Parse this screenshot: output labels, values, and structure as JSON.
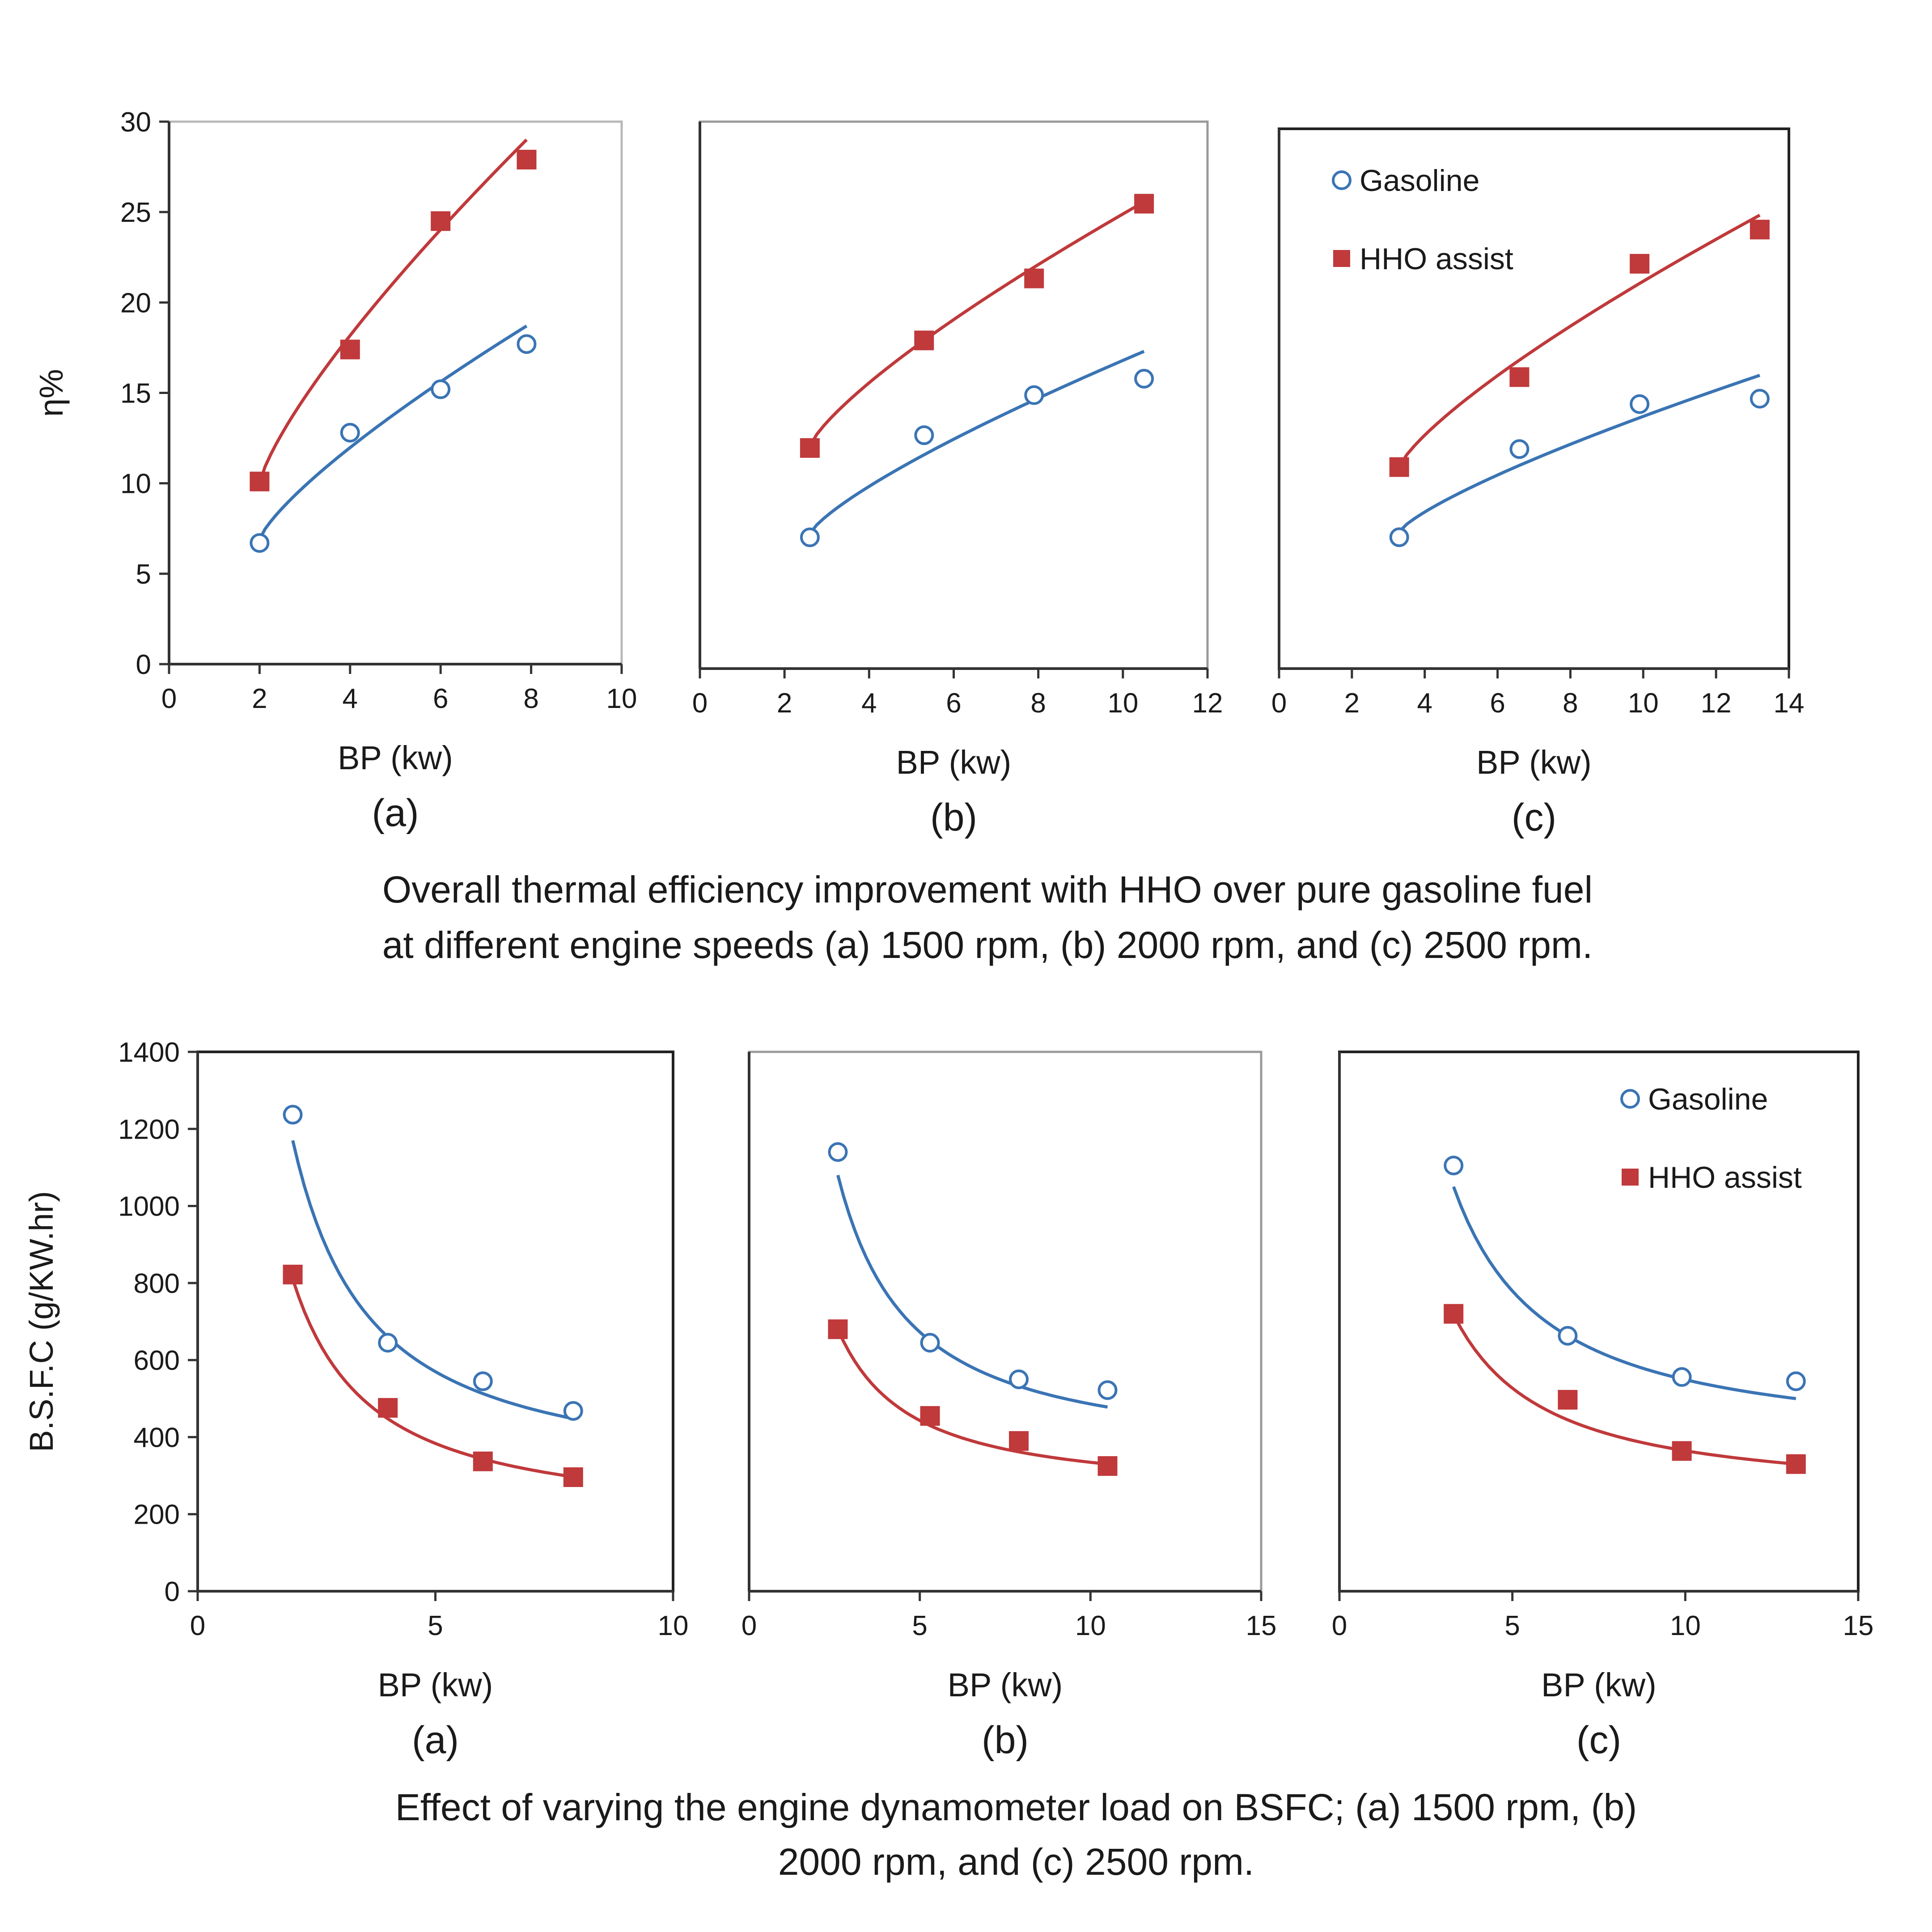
{
  "captions": {
    "row1": [
      "Overall thermal efficiency improvement with HHO over pure gasoline fuel",
      "at different engine speeds (a) 1500 rpm, (b) 2000 rpm, and (c) 2500 rpm."
    ],
    "row2": [
      "Effect of varying the engine dynamometer load on BSFC; (a) 1500 rpm, (b)",
      "2000 rpm, and (c) 2500 rpm."
    ]
  },
  "colors": {
    "gasoline": "#3a74b4",
    "hho": "#c0393b",
    "axis": "#333333"
  },
  "chart_data": [
    {
      "type": "scatter",
      "row": 1,
      "panel_label": "(a)",
      "xlabel": "BP (kw)",
      "ylabel": "η%",
      "xlim": [
        0,
        10
      ],
      "xticks": [
        0,
        2,
        4,
        6,
        8,
        10
      ],
      "ylim": [
        0,
        30
      ],
      "yticks": [
        0,
        5,
        10,
        15,
        20,
        25,
        30
      ],
      "grid": false,
      "series": [
        {
          "name": "Gasoline",
          "marker": "circle",
          "x": [
            2,
            4,
            6,
            7.9
          ],
          "y": [
            6.7,
            12.8,
            15.2,
            17.7
          ],
          "fit": {
            "x": [
              2,
              7.9
            ],
            "y": [
              6.9,
              18.7
            ]
          }
        },
        {
          "name": "HHO assist",
          "marker": "square",
          "x": [
            2,
            4,
            6,
            7.9
          ],
          "y": [
            10.1,
            17.4,
            24.5,
            27.9
          ],
          "fit": {
            "x": [
              2,
              7.9
            ],
            "y": [
              10,
              29
            ]
          }
        }
      ]
    },
    {
      "type": "scatter",
      "row": 1,
      "panel_label": "(b)",
      "xlabel": "BP (kw)",
      "ylabel": "",
      "xlim": [
        0,
        12
      ],
      "xticks": [
        0,
        2,
        4,
        6,
        8,
        10,
        12
      ],
      "ylim": [
        0,
        30
      ],
      "yticks": [],
      "grid": false,
      "series": [
        {
          "name": "Gasoline",
          "marker": "circle",
          "x": [
            2.6,
            5.3,
            7.9,
            10.5
          ],
          "y": [
            7.2,
            12.8,
            15.0,
            15.9
          ],
          "fit": {
            "x": [
              2.6,
              10.5
            ],
            "y": [
              7.4,
              17.4
            ]
          }
        },
        {
          "name": "HHO assist",
          "marker": "square",
          "x": [
            2.6,
            5.3,
            7.9,
            10.5
          ],
          "y": [
            12.1,
            18.0,
            21.4,
            25.5
          ],
          "fit": {
            "x": [
              2.6,
              10.5
            ],
            "y": [
              12.2,
              25.6
            ]
          }
        }
      ]
    },
    {
      "type": "scatter",
      "row": 1,
      "panel_label": "(c)",
      "xlabel": "BP (kw)",
      "ylabel": "",
      "xlim": [
        0,
        14
      ],
      "xticks": [
        0,
        2,
        4,
        6,
        8,
        10,
        12,
        14
      ],
      "ylim": [
        0,
        30
      ],
      "yticks": [],
      "grid": false,
      "legend": "top-left",
      "series": [
        {
          "name": "Gasoline",
          "marker": "circle",
          "x": [
            3.3,
            6.6,
            9.9,
            13.2
          ],
          "y": [
            7.3,
            12.2,
            14.7,
            15.0
          ],
          "fit": {
            "x": [
              3.3,
              13.2
            ],
            "y": [
              7.6,
              16.3
            ]
          }
        },
        {
          "name": "HHO assist",
          "marker": "square",
          "x": [
            3.3,
            6.6,
            9.9,
            13.2
          ],
          "y": [
            11.2,
            16.2,
            22.5,
            24.4
          ],
          "fit": {
            "x": [
              3.3,
              13.2
            ],
            "y": [
              11.2,
              25.2
            ]
          }
        }
      ]
    },
    {
      "type": "scatter",
      "row": 2,
      "panel_label": "(a)",
      "xlabel": "BP (kw)",
      "ylabel": "B.S.F.C (g/KW.hr)",
      "xlim": [
        0,
        10
      ],
      "xticks": [
        0,
        5,
        10
      ],
      "ylim": [
        0,
        1400
      ],
      "yticks": [
        0,
        200,
        400,
        600,
        800,
        1000,
        1200,
        1400
      ],
      "grid": false,
      "series": [
        {
          "name": "Gasoline",
          "marker": "circle",
          "x": [
            2,
            4,
            6,
            7.9
          ],
          "y": [
            1237,
            645,
            545,
            468
          ],
          "fit": {
            "x": [
              2,
              7.9
            ],
            "y": [
              1170,
              448
            ]
          }
        },
        {
          "name": "HHO assist",
          "marker": "square",
          "x": [
            2,
            4,
            6,
            7.9
          ],
          "y": [
            822,
            476,
            337,
            296
          ],
          "fit": {
            "x": [
              2,
              7.9
            ],
            "y": [
              810,
              297
            ]
          }
        }
      ]
    },
    {
      "type": "scatter",
      "row": 2,
      "panel_label": "(b)",
      "xlabel": "BP (kw)",
      "ylabel": "",
      "xlim": [
        0,
        15
      ],
      "xticks": [
        0,
        5,
        10,
        15
      ],
      "ylim": [
        0,
        1400
      ],
      "yticks": [],
      "grid": false,
      "series": [
        {
          "name": "Gasoline",
          "marker": "circle",
          "x": [
            2.6,
            5.3,
            7.9,
            10.5
          ],
          "y": [
            1140,
            645,
            550,
            522
          ],
          "fit": {
            "x": [
              2.6,
              10.5
            ],
            "y": [
              1080,
              478
            ]
          }
        },
        {
          "name": "HHO assist",
          "marker": "square",
          "x": [
            2.6,
            5.3,
            7.9,
            10.5
          ],
          "y": [
            680,
            455,
            390,
            325
          ],
          "fit": {
            "x": [
              2.6,
              10.5
            ],
            "y": [
              680,
              330
            ]
          }
        }
      ]
    },
    {
      "type": "scatter",
      "row": 2,
      "panel_label": "(c)",
      "xlabel": "BP (kw)",
      "ylabel": "",
      "xlim": [
        0,
        15
      ],
      "xticks": [
        0,
        5,
        10,
        15
      ],
      "ylim": [
        0,
        1400
      ],
      "yticks": [],
      "grid": false,
      "legend": "top-right",
      "series": [
        {
          "name": "Gasoline",
          "marker": "circle",
          "x": [
            3.3,
            6.6,
            9.9,
            13.2
          ],
          "y": [
            1105,
            663,
            556,
            545
          ],
          "fit": {
            "x": [
              3.3,
              13.2
            ],
            "y": [
              1050,
              500
            ]
          }
        },
        {
          "name": "HHO assist",
          "marker": "square",
          "x": [
            3.3,
            6.6,
            9.9,
            13.2
          ],
          "y": [
            720,
            497,
            364,
            330
          ],
          "fit": {
            "x": [
              3.3,
              13.2
            ],
            "y": [
              718,
              330
            ]
          }
        }
      ]
    }
  ]
}
